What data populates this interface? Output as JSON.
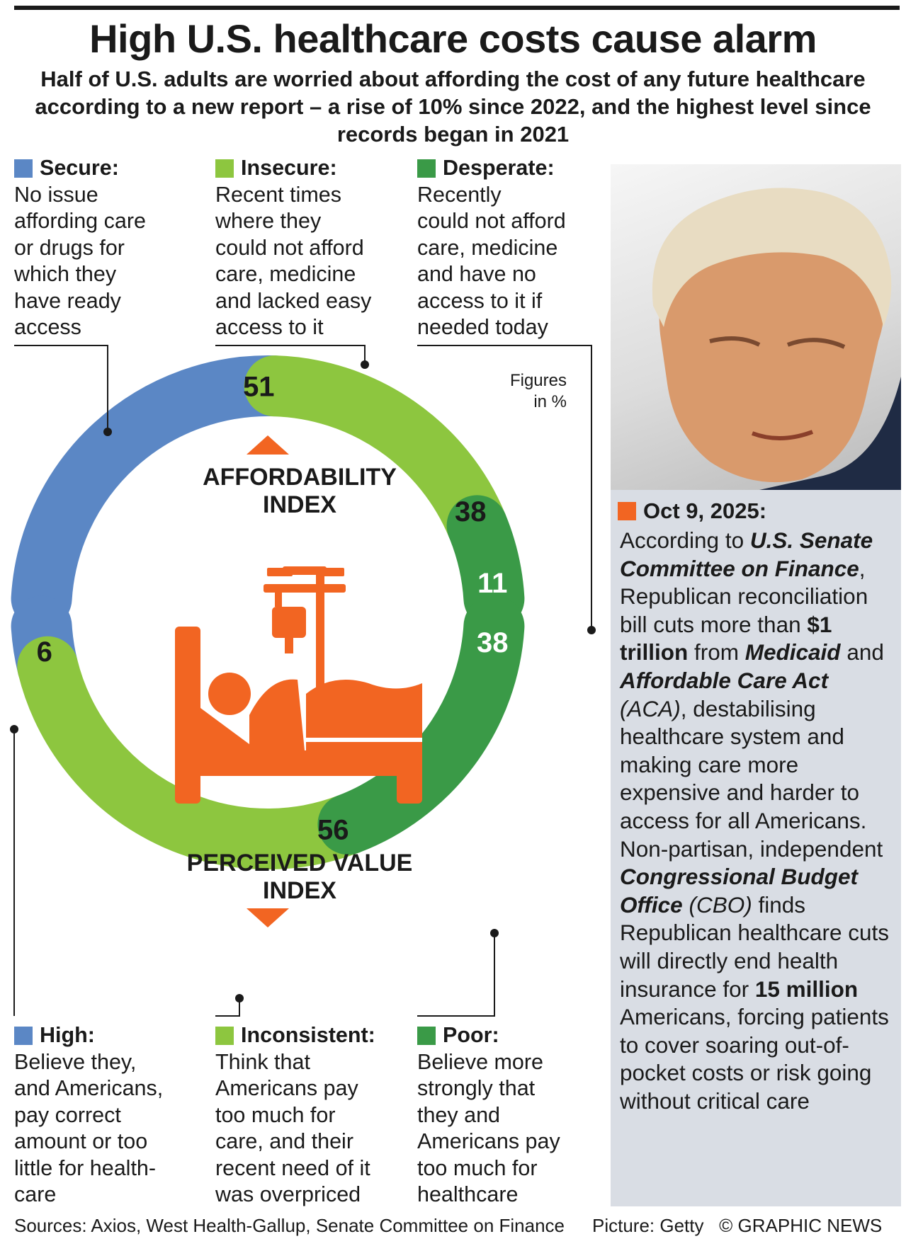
{
  "title": "High U.S. healthcare costs cause alarm",
  "subtitle": "Half of U.S. adults are worried about affording the cost of any future healthcare according to a new report – a rise of 10% since 2022, and the highest level since records began in 2021",
  "colors": {
    "secure": "#5b87c5",
    "insecure": "#8dc63f",
    "desperate": "#3a9a47",
    "accent": "#f26522",
    "panel": "#d9dde4"
  },
  "legend_top": [
    {
      "label": "Secure:",
      "color": "#5b87c5",
      "desc": "No issue\naffording care\nor drugs for\nwhich they\nhave ready\naccess"
    },
    {
      "label": "Insecure:",
      "color": "#8dc63f",
      "desc": "Recent times\nwhere they\ncould not afford\ncare, medicine\nand lacked easy\naccess to it"
    },
    {
      "label": "Desperate:",
      "color": "#3a9a47",
      "desc": "Recently\ncould not afford\ncare, medicine\nand have no\naccess to it if\nneeded today"
    }
  ],
  "legend_bottom": [
    {
      "label": "High:",
      "color": "#5b87c5",
      "desc": "Believe they,\nand Americans,\npay correct\namount or too\nlittle for health-\ncare"
    },
    {
      "label": "Inconsistent:",
      "color": "#8dc63f",
      "desc": "Think that\nAmericans pay\ntoo much for\ncare, and their\nrecent need of it\nwas overpriced"
    },
    {
      "label": "Poor:",
      "color": "#3a9a47",
      "desc": "Believe more\nstrongly that\nthey and\nAmericans pay\ntoo much for\nhealthcare"
    }
  ],
  "figures_note": "Figures\nin %",
  "icon": "hospital-bed-iv-icon",
  "chart_data": [
    {
      "type": "pie",
      "title": "AFFORDABILITY INDEX",
      "unit": "%",
      "categories": [
        "Secure",
        "Insecure",
        "Desperate"
      ],
      "values": [
        51,
        38,
        11
      ]
    },
    {
      "type": "pie",
      "title": "PERCEIVED VALUE INDEX",
      "unit": "%",
      "categories": [
        "High",
        "Inconsistent",
        "Poor"
      ],
      "values": [
        6,
        56,
        38
      ]
    }
  ],
  "news": {
    "date": "Oct 9, 2025:",
    "p1": "According to ",
    "b1": "U.S. Senate Committee on Finance",
    "p2": ", Republican reconciliation bill cuts more than ",
    "b2": "$1 trillion",
    "p3": " from ",
    "b3": "Medicaid",
    "p4": " and ",
    "b4": "Affordable Care Act",
    "i1": " (ACA)",
    "p5": ", destabilising healthcare system and making care more expensive and harder to access for all Americans. Non-partisan, independent ",
    "b5": "Congressional Budget Office",
    "i2": " (CBO)",
    "p6": " finds Republican healthcare cuts will directly end health insurance for ",
    "b6": "15 million",
    "p7": " Americans, forcing patients to cover soaring out-of-pocket costs or risk going without critical care"
  },
  "footer": {
    "sources": "Sources: Axios, West Health-Gallup, Senate Committee on Finance",
    "picture": "Picture: Getty",
    "credit": "© GRAPHIC NEWS"
  }
}
